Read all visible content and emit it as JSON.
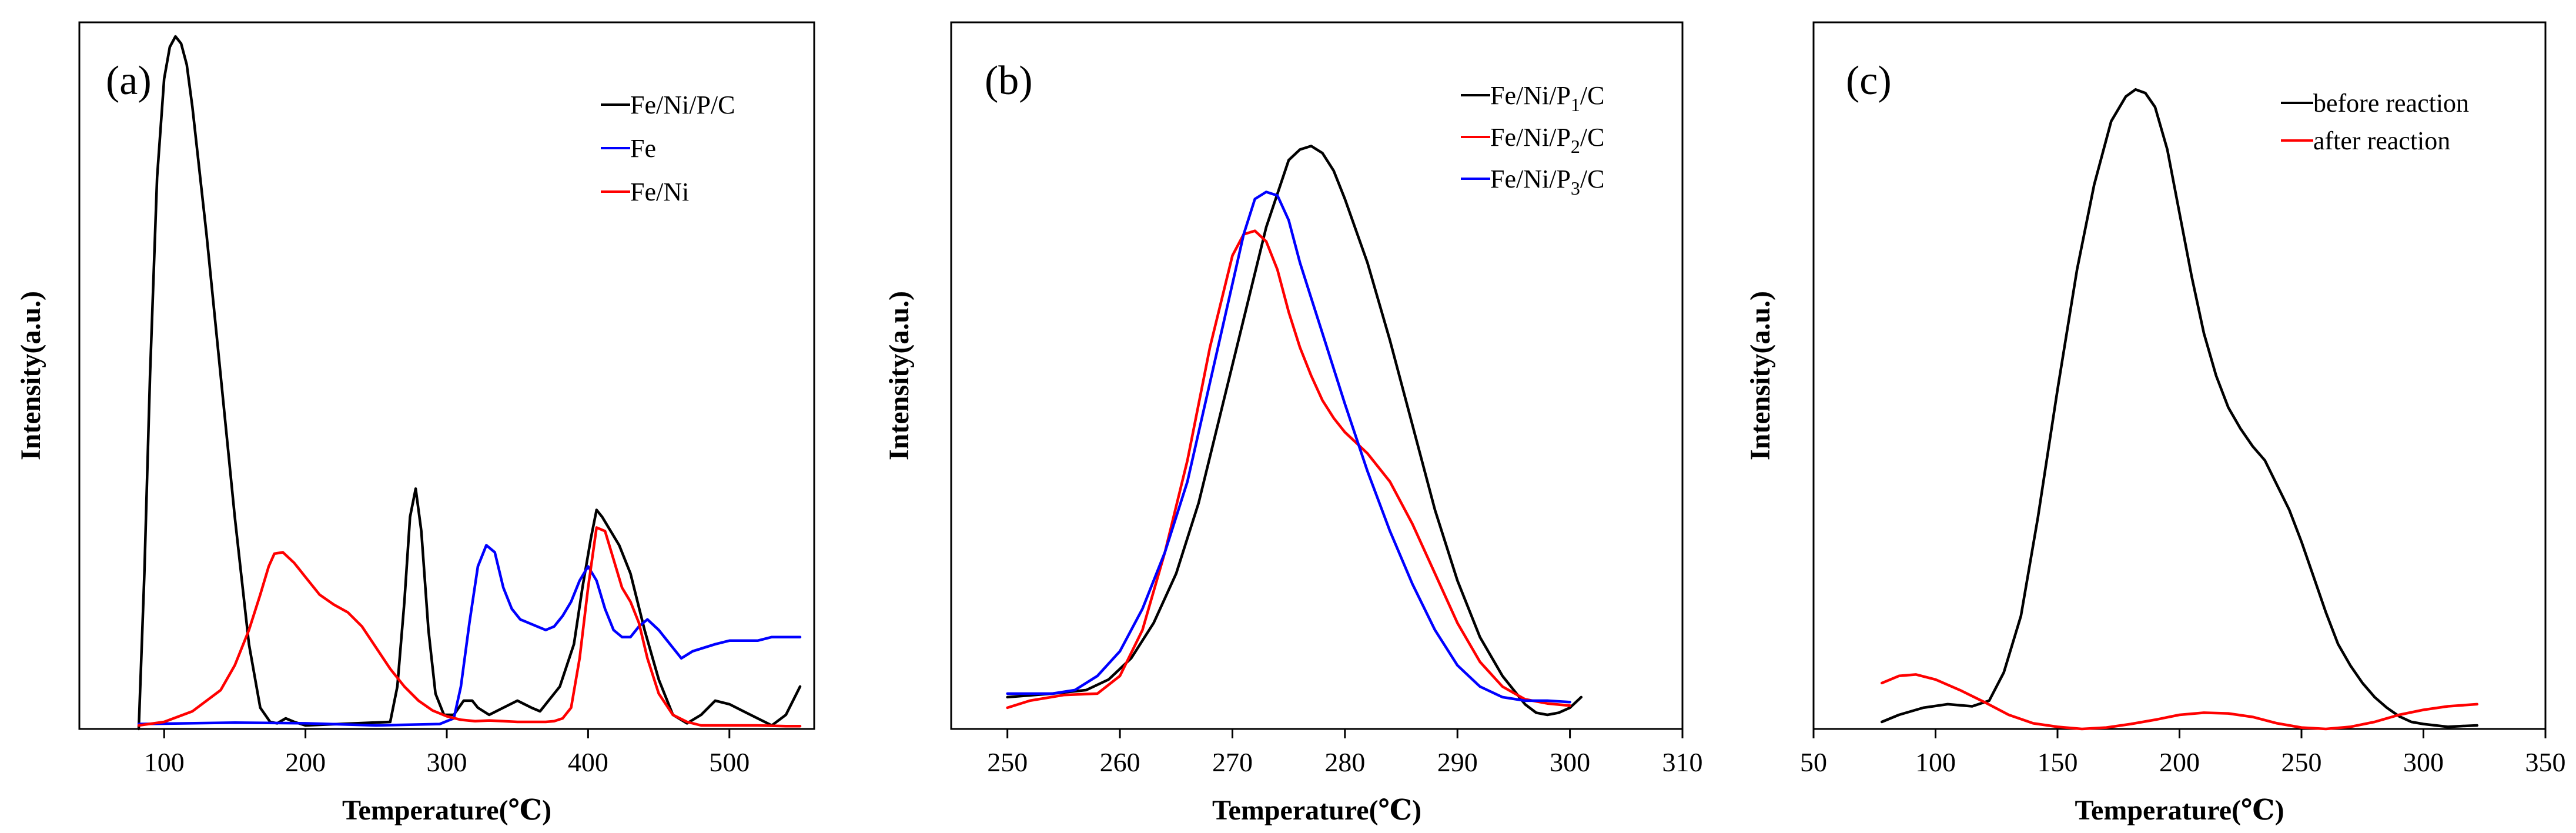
{
  "chart_data": [
    {
      "type": "line",
      "panel_label": "(a)",
      "xlabel": "Temperature(℃)",
      "ylabel": "Intensity(a.u.)",
      "xlim": [
        40,
        560
      ],
      "ylim": [
        0,
        100
      ],
      "xticks": [
        100,
        200,
        300,
        400,
        500
      ],
      "yticks_shown": false,
      "legend_position": "top-right",
      "series": [
        {
          "name": "Fe/Ni/P/C",
          "color": "#000000",
          "x": [
            82,
            86,
            90,
            95,
            100,
            104,
            108,
            112,
            116,
            120,
            130,
            140,
            150,
            160,
            168,
            175,
            180,
            186,
            192,
            200,
            260,
            265,
            270,
            274,
            278,
            282,
            287,
            292,
            298,
            305,
            312,
            318,
            322,
            330,
            340,
            350,
            360,
            366,
            372,
            380,
            390,
            396,
            402,
            406,
            410,
            416,
            422,
            430,
            440,
            450,
            460,
            470,
            480,
            490,
            500,
            510,
            520,
            530,
            540,
            550
          ],
          "y": [
            0,
            22,
            50,
            78,
            92,
            96.5,
            98,
            97,
            94,
            88,
            70,
            50,
            30,
            12,
            3,
            1,
            0.8,
            1.5,
            1,
            0.5,
            1,
            6,
            18,
            30,
            34,
            28,
            14,
            5,
            2,
            2,
            4,
            4,
            3,
            2,
            3,
            4,
            3,
            2.5,
            4,
            6,
            12,
            20,
            27,
            31,
            30,
            28,
            26,
            22,
            14,
            7,
            2,
            0.8,
            2,
            4,
            3.5,
            2.5,
            1.5,
            0.5,
            2,
            6
          ]
        },
        {
          "name": "Fe",
          "color": "#0000ff",
          "x": [
            82,
            150,
            200,
            250,
            295,
            305,
            310,
            316,
            322,
            328,
            334,
            340,
            346,
            352,
            358,
            364,
            370,
            376,
            382,
            388,
            394,
            400,
            406,
            412,
            418,
            424,
            430,
            436,
            442,
            450,
            458,
            466,
            474,
            482,
            490,
            500,
            510,
            520,
            530,
            540,
            550
          ],
          "y": [
            0.7,
            0.9,
            0.8,
            0.5,
            0.7,
            1.5,
            6,
            15,
            23,
            26,
            25,
            20,
            17,
            15.5,
            15,
            14.5,
            14,
            14.5,
            16,
            18,
            21,
            23,
            21,
            17,
            14,
            13,
            13,
            14.5,
            15.5,
            14,
            12,
            10,
            11,
            11.5,
            12,
            12.5,
            12.5,
            12.5,
            13,
            13,
            13
          ]
        },
        {
          "name": "Fe/Ni",
          "color": "#ff0000",
          "x": [
            82,
            100,
            120,
            140,
            150,
            160,
            168,
            174,
            178,
            184,
            192,
            200,
            210,
            220,
            230,
            240,
            250,
            260,
            270,
            280,
            290,
            300,
            310,
            320,
            330,
            340,
            350,
            360,
            370,
            376,
            382,
            388,
            394,
            400,
            406,
            412,
            418,
            424,
            430,
            436,
            442,
            450,
            460,
            470,
            480,
            500,
            520,
            540,
            550
          ],
          "y": [
            0.5,
            1,
            2.5,
            5.5,
            9,
            14,
            19,
            23,
            24.8,
            25,
            23.5,
            21.5,
            19,
            17.6,
            16.5,
            14.5,
            11.5,
            8.5,
            6,
            4,
            2.6,
            1.8,
            1.3,
            1.1,
            1.2,
            1.1,
            1,
            1,
            1,
            1.1,
            1.5,
            3,
            10,
            20,
            28.5,
            28,
            24,
            20,
            18,
            15,
            10,
            5,
            2,
            1,
            0.5,
            0.5,
            0.5,
            0.4,
            0.4
          ]
        }
      ]
    },
    {
      "type": "line",
      "panel_label": "(b)",
      "xlabel": "Temperature(℃)",
      "ylabel": "Intensity(a.u.)",
      "xlim": [
        245,
        310
      ],
      "ylim": [
        0,
        100
      ],
      "xticks": [
        250,
        260,
        270,
        280,
        290,
        300,
        310
      ],
      "yticks_shown": false,
      "legend_position": "top-right",
      "legend_subscripts": [
        "1",
        "2",
        "3"
      ],
      "series": [
        {
          "name": "Fe/Ni/P1/C",
          "color": "#000000",
          "x": [
            250,
            254,
            257,
            259,
            261,
            263,
            265,
            267,
            269,
            271,
            273,
            275,
            276,
            277,
            278,
            279,
            280,
            282,
            284,
            286,
            288,
            290,
            292,
            294,
            296,
            297,
            298,
            299,
            300,
            301
          ],
          "y": [
            4.5,
            5,
            5.5,
            7,
            10,
            15,
            22,
            32,
            45,
            58,
            71,
            80.5,
            82,
            82.5,
            81.5,
            79,
            75,
            66,
            55,
            43,
            31,
            21,
            13,
            7.5,
            3.5,
            2.3,
            2,
            2.3,
            3,
            4.5
          ]
        },
        {
          "name": "Fe/Ni/P2/C",
          "color": "#ff0000",
          "x": [
            250,
            252,
            255,
            258,
            260,
            262,
            264,
            266,
            268,
            270,
            271,
            272,
            273,
            274,
            275,
            276,
            277,
            278,
            279,
            280,
            281,
            282,
            283,
            284,
            286,
            288,
            290,
            292,
            294,
            296,
            298,
            300
          ],
          "y": [
            3,
            4,
            4.8,
            5,
            7.5,
            14,
            25,
            38,
            54,
            67,
            70,
            70.5,
            69,
            65,
            59,
            54,
            50,
            46.5,
            44,
            42,
            40.5,
            39,
            37,
            35,
            29,
            22,
            15,
            9.5,
            6,
            4.2,
            3.6,
            3.3
          ]
        },
        {
          "name": "Fe/Ni/P3/C",
          "color": "#0000ff",
          "x": [
            250,
            254,
            256,
            258,
            260,
            262,
            264,
            266,
            268,
            270,
            271,
            272,
            273,
            274,
            275,
            276,
            277,
            278,
            280,
            282,
            284,
            286,
            288,
            290,
            292,
            294,
            296,
            298,
            300
          ],
          "y": [
            5,
            5,
            5.5,
            7.5,
            11,
            17,
            25,
            35,
            49,
            63,
            70,
            75,
            76,
            75.5,
            72,
            66,
            61,
            56,
            46,
            36.5,
            28,
            20.5,
            14,
            9,
            6,
            4.5,
            4,
            4,
            3.8
          ]
        }
      ]
    },
    {
      "type": "line",
      "panel_label": "(c)",
      "xlabel": "Temperature(℃)",
      "ylabel": "Intensity(a.u.)",
      "xlim": [
        50,
        350
      ],
      "ylim": [
        0,
        100
      ],
      "xticks": [
        50,
        100,
        150,
        200,
        250,
        300,
        350
      ],
      "yticks_shown": false,
      "legend_position": "top-right",
      "series": [
        {
          "name": "before reaction",
          "color": "#000000",
          "x": [
            78,
            85,
            95,
            105,
            115,
            122,
            128,
            135,
            142,
            150,
            158,
            165,
            172,
            178,
            182,
            186,
            190,
            195,
            200,
            205,
            210,
            215,
            220,
            225,
            230,
            235,
            240,
            245,
            250,
            255,
            260,
            265,
            270,
            275,
            280,
            285,
            290,
            295,
            300,
            305,
            310,
            315,
            322
          ],
          "y": [
            1,
            2,
            3,
            3.5,
            3.2,
            4,
            8,
            16,
            30,
            48,
            65,
            77,
            86,
            89.5,
            90.5,
            90,
            88,
            82,
            73,
            64,
            56,
            50,
            45.5,
            42.5,
            40,
            38,
            34.5,
            31,
            26.5,
            21.5,
            16.5,
            12,
            9,
            6.5,
            4.5,
            3,
            1.8,
            1,
            0.7,
            0.5,
            0.3,
            0.4,
            0.5
          ]
        },
        {
          "name": "after reaction",
          "color": "#ff0000",
          "x": [
            78,
            85,
            92,
            100,
            110,
            120,
            130,
            140,
            150,
            160,
            170,
            180,
            190,
            200,
            210,
            220,
            230,
            240,
            250,
            260,
            270,
            280,
            290,
            300,
            310,
            322
          ],
          "y": [
            6.5,
            7.5,
            7.7,
            7,
            5.5,
            3.8,
            2,
            0.8,
            0.3,
            0,
            0.2,
            0.7,
            1.3,
            2,
            2.3,
            2.2,
            1.7,
            0.8,
            0.2,
            0,
            0.3,
            1,
            2,
            2.7,
            3.2,
            3.5
          ]
        }
      ]
    }
  ]
}
